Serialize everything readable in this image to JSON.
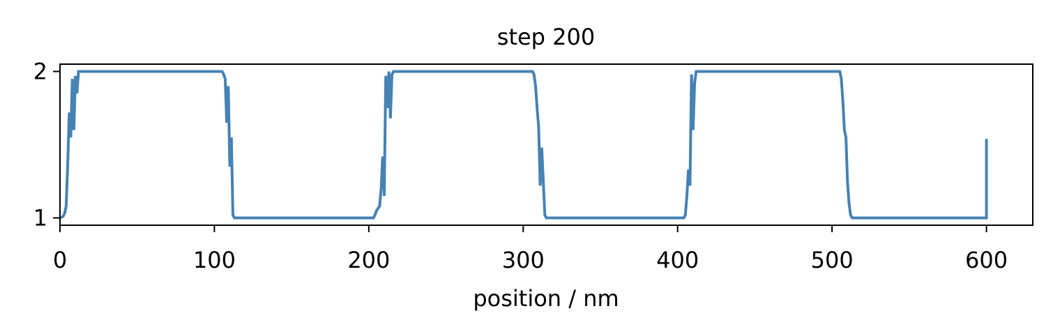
{
  "chart_data": {
    "type": "line",
    "title": "step 200",
    "x_label": "position / nm",
    "x": [
      0,
      2,
      3,
      4,
      5,
      6,
      7,
      8,
      9,
      10,
      11,
      12,
      105,
      106,
      107,
      108,
      109,
      110,
      111,
      112,
      113,
      203,
      204,
      205,
      207,
      208,
      209,
      210,
      211,
      212,
      213,
      214,
      215,
      216,
      306,
      307,
      308,
      309,
      310,
      311,
      312,
      313,
      314,
      315,
      404,
      405,
      406,
      407,
      408,
      409,
      410,
      411,
      412,
      505,
      506,
      507,
      508,
      509,
      510,
      511,
      512,
      513,
      600,
      600
    ],
    "series": [
      {
        "color": "#4682b4",
        "values": [
          1.0,
          1.01,
          1.03,
          1.08,
          1.36,
          1.72,
          1.55,
          1.95,
          1.6,
          1.97,
          1.85,
          2.0,
          2.0,
          1.98,
          1.95,
          1.65,
          1.9,
          1.35,
          1.55,
          1.02,
          1.0,
          1.0,
          1.02,
          1.05,
          1.08,
          1.2,
          1.42,
          1.15,
          1.97,
          1.75,
          2.0,
          1.68,
          1.98,
          2.0,
          2.0,
          1.98,
          1.9,
          1.75,
          1.62,
          1.22,
          1.48,
          1.25,
          1.02,
          1.0,
          1.0,
          1.02,
          1.15,
          1.33,
          1.22,
          1.98,
          1.6,
          1.92,
          2.0,
          2.0,
          1.95,
          1.8,
          1.6,
          1.55,
          1.25,
          1.1,
          1.02,
          1.0,
          1.0,
          1.54
        ]
      }
    ],
    "xlim": [
      0,
      630
    ],
    "xticks": [
      0,
      100,
      200,
      300,
      400,
      500,
      600
    ],
    "ylim": [
      0.95,
      2.05
    ],
    "yticks": [
      1,
      2
    ]
  }
}
